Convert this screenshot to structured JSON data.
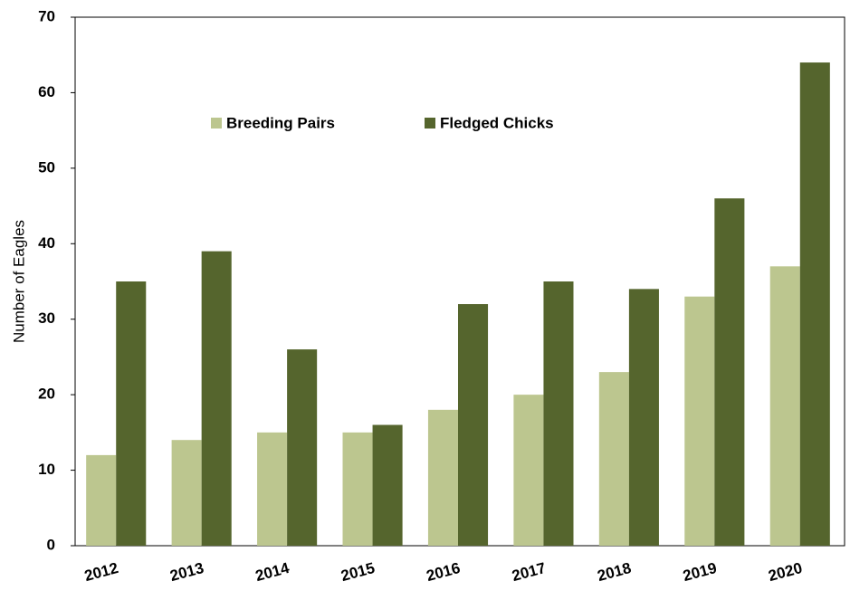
{
  "chart_data": {
    "type": "bar",
    "y_label": "Number of Eagles",
    "categories": [
      "2012",
      "2013",
      "2014",
      "2015",
      "2016",
      "2017",
      "2018",
      "2019",
      "2020"
    ],
    "series": [
      {
        "name": "Breeding Pairs",
        "color": "#bcc68f",
        "values": [
          12,
          14,
          15,
          15,
          18,
          20,
          23,
          33,
          37
        ]
      },
      {
        "name": "Fledged Chicks",
        "color": "#55652d",
        "values": [
          35,
          39,
          26,
          16,
          32,
          35,
          34,
          46,
          64
        ]
      }
    ],
    "ylim": [
      0,
      70
    ],
    "yticks": [
      0,
      10,
      20,
      30,
      40,
      50,
      60,
      70
    ],
    "grid": false,
    "legend": "top"
  }
}
